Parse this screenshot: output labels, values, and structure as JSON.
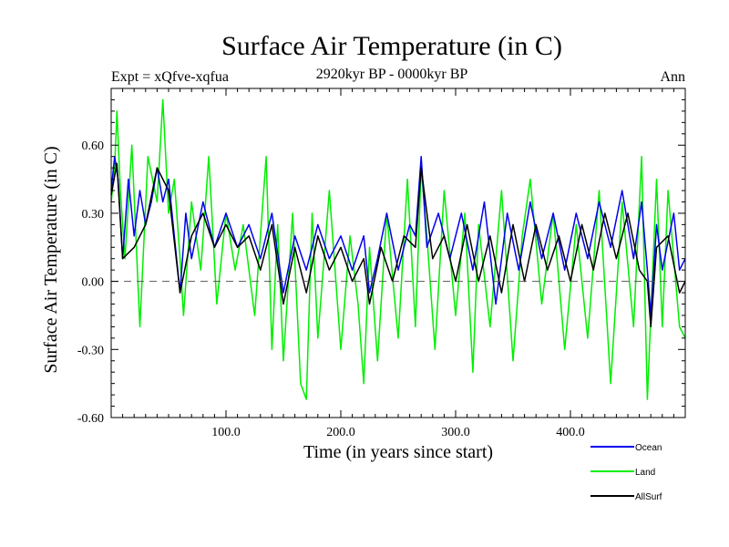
{
  "chart_data": {
    "type": "line",
    "title": "Surface Air Temperature (in C)",
    "subtitle_left": "Expt = xQfve-xqfua",
    "subtitle_center": "2920kyr BP - 0000kyr BP",
    "subtitle_right": "Ann",
    "xlabel": "Time (in years since start)",
    "ylabel": "Surface Air Temperature (in C)",
    "xlim": [
      0,
      500
    ],
    "ylim": [
      -0.6,
      0.85
    ],
    "xticks": [
      {
        "value": 100,
        "label": "100.0"
      },
      {
        "value": 200,
        "label": "200.0"
      },
      {
        "value": 300,
        "label": "300.0"
      },
      {
        "value": 400,
        "label": "400.0"
      }
    ],
    "yticks": [
      {
        "value": 0.6,
        "label": "0.60"
      },
      {
        "value": 0.3,
        "label": "0.30"
      },
      {
        "value": 0.0,
        "label": "0.00"
      },
      {
        "value": -0.3,
        "label": "-0.30"
      },
      {
        "value": -0.6,
        "label": "-0.60"
      }
    ],
    "zero_line": true,
    "series": [
      {
        "name": "Land",
        "color": "#00ee00",
        "x": [
          0,
          3,
          5,
          8,
          12,
          18,
          25,
          32,
          40,
          45,
          50,
          55,
          60,
          63,
          70,
          78,
          85,
          92,
          100,
          108,
          115,
          125,
          135,
          140,
          145,
          150,
          158,
          165,
          170,
          175,
          180,
          190,
          200,
          208,
          215,
          220,
          225,
          232,
          240,
          250,
          258,
          265,
          270,
          275,
          282,
          290,
          300,
          308,
          315,
          320,
          330,
          340,
          350,
          358,
          365,
          375,
          385,
          395,
          405,
          415,
          425,
          435,
          445,
          455,
          462,
          467,
          470,
          475,
          480,
          485,
          490,
          495,
          500
        ],
        "values": [
          0.35,
          0.5,
          0.75,
          0.4,
          0.1,
          0.6,
          -0.2,
          0.55,
          0.35,
          0.8,
          0.3,
          0.45,
          0.1,
          -0.15,
          0.35,
          0.05,
          0.55,
          -0.1,
          0.3,
          0.05,
          0.25,
          -0.15,
          0.55,
          -0.3,
          0.25,
          -0.35,
          0.3,
          -0.45,
          -0.52,
          0.3,
          -0.25,
          0.4,
          -0.3,
          0.2,
          -0.1,
          -0.45,
          0.15,
          -0.35,
          0.3,
          -0.25,
          0.45,
          -0.2,
          0.5,
          0.2,
          -0.3,
          0.4,
          -0.15,
          0.3,
          -0.4,
          0.25,
          -0.2,
          0.4,
          -0.35,
          0.2,
          0.45,
          -0.1,
          0.3,
          -0.3,
          0.25,
          -0.25,
          0.4,
          -0.45,
          0.35,
          -0.2,
          0.55,
          -0.52,
          -0.15,
          0.45,
          -0.2,
          0.4,
          0.1,
          -0.2,
          -0.25
        ]
      },
      {
        "name": "Ocean",
        "color": "#0000ee",
        "x": [
          0,
          3,
          6,
          10,
          15,
          20,
          25,
          30,
          35,
          40,
          45,
          50,
          55,
          60,
          65,
          70,
          80,
          90,
          100,
          110,
          120,
          130,
          140,
          150,
          160,
          170,
          180,
          190,
          200,
          210,
          220,
          225,
          232,
          240,
          250,
          260,
          265,
          270,
          275,
          285,
          295,
          305,
          315,
          325,
          335,
          345,
          355,
          365,
          375,
          385,
          395,
          405,
          415,
          425,
          435,
          445,
          455,
          462,
          467,
          470,
          475,
          480,
          490,
          495,
          500
        ],
        "values": [
          0.4,
          0.55,
          0.45,
          0.1,
          0.45,
          0.2,
          0.4,
          0.25,
          0.35,
          0.5,
          0.35,
          0.45,
          0.2,
          -0.05,
          0.3,
          0.1,
          0.35,
          0.15,
          0.3,
          0.15,
          0.25,
          0.1,
          0.3,
          -0.05,
          0.2,
          0.05,
          0.25,
          0.1,
          0.2,
          0.05,
          0.2,
          -0.05,
          0.1,
          0.3,
          0.05,
          0.25,
          0.2,
          0.55,
          0.15,
          0.3,
          0.1,
          0.3,
          0.05,
          0.35,
          -0.1,
          0.3,
          0.05,
          0.35,
          0.1,
          0.3,
          0.05,
          0.3,
          0.1,
          0.35,
          0.15,
          0.4,
          0.1,
          0.35,
          0.05,
          -0.15,
          0.25,
          0.05,
          0.3,
          0.05,
          0.1
        ]
      },
      {
        "name": "AllSurf",
        "color": "#000000",
        "x": [
          0,
          5,
          10,
          20,
          30,
          40,
          50,
          60,
          70,
          80,
          90,
          100,
          110,
          120,
          130,
          140,
          150,
          160,
          170,
          180,
          190,
          200,
          210,
          220,
          225,
          235,
          245,
          255,
          265,
          270,
          280,
          290,
          300,
          310,
          320,
          330,
          340,
          350,
          360,
          370,
          380,
          390,
          400,
          410,
          420,
          430,
          440,
          450,
          460,
          467,
          470,
          475,
          485,
          495,
          500
        ],
        "values": [
          0.38,
          0.52,
          0.1,
          0.15,
          0.25,
          0.5,
          0.4,
          -0.05,
          0.2,
          0.3,
          0.15,
          0.25,
          0.15,
          0.2,
          0.05,
          0.25,
          -0.1,
          0.15,
          -0.05,
          0.2,
          0.05,
          0.15,
          0.0,
          0.1,
          -0.1,
          0.15,
          0.0,
          0.2,
          0.15,
          0.5,
          0.1,
          0.2,
          0.0,
          0.25,
          0.0,
          0.2,
          -0.05,
          0.25,
          0.0,
          0.25,
          0.05,
          0.2,
          0.0,
          0.25,
          0.05,
          0.3,
          0.1,
          0.3,
          0.05,
          0.0,
          -0.2,
          0.15,
          0.2,
          -0.05,
          0.0
        ]
      }
    ],
    "legend": [
      {
        "label": "Ocean",
        "color": "#0000ee"
      },
      {
        "label": "Land",
        "color": "#00ee00"
      },
      {
        "label": "AllSurf",
        "color": "#000000"
      }
    ]
  }
}
